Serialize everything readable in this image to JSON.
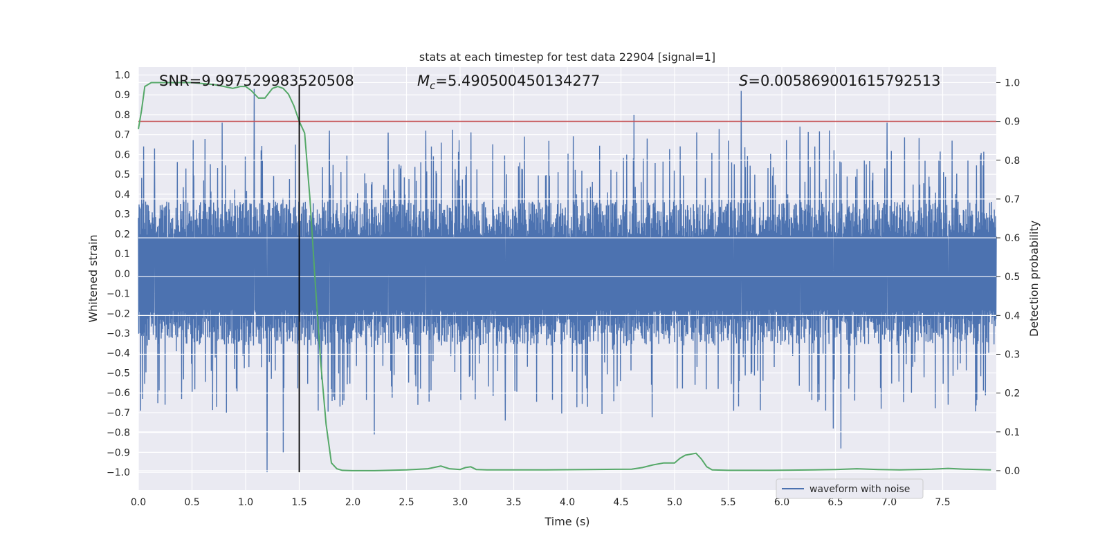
{
  "chart_data": {
    "type": "line",
    "title": "stats at each timestep for test data 22904 [signal=1]",
    "xlabel": "Time (s)",
    "ylabel_left": "Whitened strain",
    "ylabel_right": "Detection probability",
    "xlim": [
      0.0,
      8.0
    ],
    "ylim_left": [
      -1.09,
      1.04
    ],
    "ylim_right": [
      -0.05,
      1.04
    ],
    "x_ticks": [
      "0.0",
      "0.5",
      "1.0",
      "1.5",
      "2.0",
      "2.5",
      "3.0",
      "3.5",
      "4.0",
      "4.5",
      "5.0",
      "5.5",
      "6.0",
      "6.5",
      "7.0",
      "7.5"
    ],
    "y_left_ticks": [
      "1.0",
      "0.9",
      "0.8",
      "0.7",
      "0.6",
      "0.5",
      "0.4",
      "0.3",
      "0.2",
      "0.1",
      "0.0",
      "−0.1",
      "−0.2",
      "−0.3",
      "−0.4",
      "−0.5",
      "−0.6",
      "−0.7",
      "−0.8",
      "−0.9",
      "−1.0"
    ],
    "y_right_ticks": [
      "1.0",
      "0.9",
      "0.8",
      "0.7",
      "0.6",
      "0.5",
      "0.4",
      "0.3",
      "0.2",
      "0.1",
      "0.0"
    ],
    "grid": true,
    "legend_position": "bottom-right",
    "series": [
      {
        "name": "waveform with noise",
        "axis": "left",
        "color": "#4c72b0",
        "kind": "noise",
        "typical_amplitude": 0.33,
        "spikes": [
          {
            "x": 0.05,
            "y": 0.64
          },
          {
            "x": 0.15,
            "y": 0.63
          },
          {
            "x": 0.78,
            "y": 0.76
          },
          {
            "x": 1.08,
            "y": 0.93
          },
          {
            "x": 1.78,
            "y": 0.72
          },
          {
            "x": 2.33,
            "y": 0.71
          },
          {
            "x": 2.68,
            "y": 0.72
          },
          {
            "x": 3.6,
            "y": 0.69
          },
          {
            "x": 4.62,
            "y": 0.8
          },
          {
            "x": 5.62,
            "y": 0.92
          },
          {
            "x": 6.17,
            "y": 0.74
          },
          {
            "x": 6.98,
            "y": 0.76
          },
          {
            "x": 0.02,
            "y": -0.69
          },
          {
            "x": 0.25,
            "y": -0.66
          },
          {
            "x": 0.82,
            "y": -0.7
          },
          {
            "x": 1.2,
            "y": -1.0
          },
          {
            "x": 1.35,
            "y": -0.9
          },
          {
            "x": 2.2,
            "y": -0.81
          },
          {
            "x": 3.42,
            "y": -0.74
          },
          {
            "x": 5.55,
            "y": -0.69
          },
          {
            "x": 6.48,
            "y": -0.78
          },
          {
            "x": 6.55,
            "y": -0.88
          },
          {
            "x": 7.55,
            "y": -0.66
          }
        ]
      },
      {
        "name": "",
        "axis": "right",
        "color": "#55a868",
        "x": [
          0.0,
          0.03,
          0.06,
          0.12,
          0.25,
          0.5,
          0.7,
          0.8,
          0.88,
          0.95,
          1.0,
          1.05,
          1.12,
          1.18,
          1.25,
          1.3,
          1.35,
          1.4,
          1.45,
          1.5,
          1.55,
          1.6,
          1.65,
          1.7,
          1.75,
          1.8,
          1.85,
          1.9,
          2.0,
          2.2,
          2.5,
          2.7,
          2.82,
          2.9,
          3.0,
          3.05,
          3.1,
          3.15,
          3.25,
          3.5,
          3.8,
          4.2,
          4.6,
          4.7,
          4.8,
          4.9,
          5.0,
          5.05,
          5.1,
          5.2,
          5.25,
          5.3,
          5.35,
          5.5,
          5.9,
          6.3,
          6.5,
          6.7,
          6.9,
          7.1,
          7.4,
          7.55,
          7.7,
          7.95
        ],
        "values": [
          0.88,
          0.93,
          0.99,
          1.0,
          1.0,
          1.0,
          0.995,
          0.99,
          0.985,
          0.99,
          0.99,
          0.98,
          0.96,
          0.96,
          0.985,
          0.99,
          0.985,
          0.97,
          0.94,
          0.9,
          0.87,
          0.7,
          0.48,
          0.28,
          0.12,
          0.02,
          0.005,
          0.001,
          0.0,
          0.0,
          0.002,
          0.005,
          0.012,
          0.005,
          0.003,
          0.008,
          0.01,
          0.003,
          0.002,
          0.002,
          0.002,
          0.003,
          0.004,
          0.008,
          0.015,
          0.02,
          0.02,
          0.032,
          0.04,
          0.045,
          0.03,
          0.01,
          0.002,
          0.001,
          0.001,
          0.002,
          0.003,
          0.005,
          0.003,
          0.002,
          0.004,
          0.006,
          0.004,
          0.002
        ]
      },
      {
        "name": "",
        "axis": "right",
        "color": "#c44e52",
        "kind": "hline",
        "y": 0.9
      },
      {
        "name": "",
        "axis": "left",
        "color": "#000000",
        "kind": "vline",
        "x": 1.5,
        "y_range": [
          -1.0,
          0.95
        ]
      }
    ],
    "annotations": {
      "snr": "SNR=9.997529983520508",
      "mc_symbol": "M",
      "mc_sub": "c",
      "mc_value": "=5.490500450134277",
      "s_symbol": "S",
      "s_value": "=0.005869001615792513"
    },
    "legend": [
      "waveform with noise"
    ]
  }
}
